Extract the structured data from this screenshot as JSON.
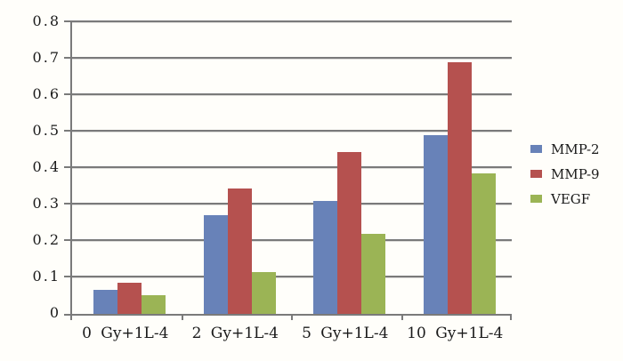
{
  "chart_data": {
    "type": "bar",
    "title": "",
    "categories": [
      "0 Gy+1L-4",
      "2 Gy+1L-4",
      "5 Gy+1L-4",
      "10 Gy+1L-4"
    ],
    "series": [
      {
        "name": "MMP-2",
        "color": "#6882B8",
        "values": [
          0.065,
          0.27,
          0.31,
          0.49
        ]
      },
      {
        "name": "MMP-9",
        "color": "#B5514F",
        "values": [
          0.085,
          0.345,
          0.445,
          0.69
        ]
      },
      {
        "name": "VEGF",
        "color": "#9BB455",
        "values": [
          0.05,
          0.115,
          0.22,
          0.385
        ]
      }
    ],
    "ylim": [
      0,
      0.8
    ],
    "ytick_step": 0.1,
    "ytick_labels": [
      "0",
      "0.1",
      "0.2",
      "0.3",
      "0.4",
      "0.5",
      "0.6",
      "0.7",
      "0.8"
    ],
    "grid": true,
    "legend_position": "right",
    "colors": {
      "axis": "#7a7a7a",
      "text": "#1a1a1a",
      "background": "#fffefa"
    }
  }
}
